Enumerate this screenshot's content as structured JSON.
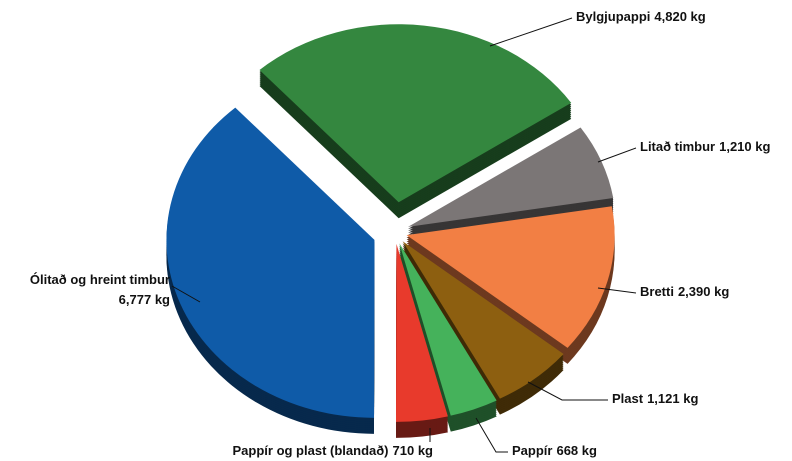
{
  "chart_data": {
    "type": "pie",
    "categories": [
      "Bylgjupappi",
      "Litað timbur",
      "Bretti",
      "Plast",
      "Pappír",
      "Pappír og plast (blandað)",
      "Ólitað og hreint timbur"
    ],
    "values": [
      4820,
      1210,
      2390,
      1121,
      668,
      710,
      6777
    ],
    "value_labels": [
      "4,820 kg",
      "1,210 kg",
      "2,390 kg",
      "1,121 kg",
      "668 kg",
      "710 kg",
      "6,777 kg"
    ],
    "colors": [
      "#34873f",
      "#7b7676",
      "#f27f44",
      "#8d5f10",
      "#45b25b",
      "#e83a2c",
      "#0f5ba8"
    ]
  }
}
